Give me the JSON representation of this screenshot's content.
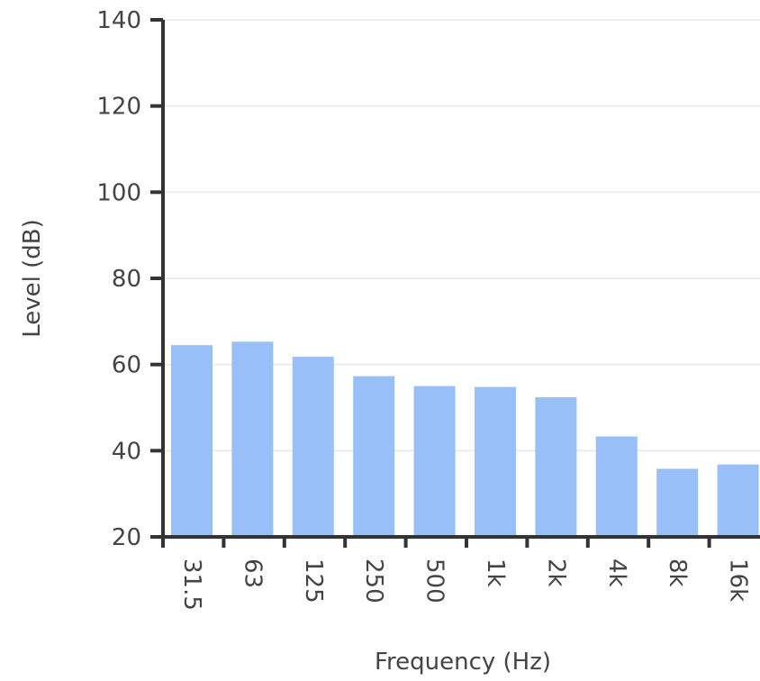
{
  "chart_data": {
    "type": "bar",
    "categories": [
      "31.5",
      "63",
      "125",
      "250",
      "500",
      "1k",
      "2k",
      "4k",
      "8k",
      "16k"
    ],
    "values": [
      64.5,
      65.3,
      61.8,
      57.3,
      55.0,
      54.8,
      52.4,
      43.3,
      35.8,
      36.8
    ],
    "xlabel": "Frequency (Hz)",
    "ylabel": "Level (dB)",
    "ylim": [
      20,
      140
    ],
    "yticks": [
      20,
      40,
      60,
      80,
      100,
      120,
      140
    ],
    "grid": true,
    "bar_color": "#99bff9"
  }
}
